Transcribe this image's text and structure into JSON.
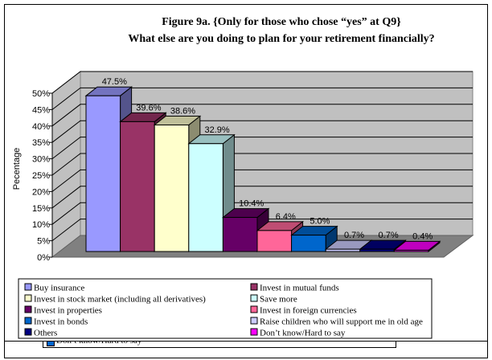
{
  "chart_data": {
    "type": "bar",
    "title": "Figure 9a. {Only for those who chose “yes” at Q9}",
    "subtitle": "What else are you doing to plan for your retirement financially?",
    "xlabel": "",
    "ylabel": "Pecentage",
    "ylim": [
      0,
      50
    ],
    "yticks": [
      "0%",
      "5%",
      "10%",
      "15%",
      "20%",
      "25%",
      "30%",
      "35%",
      "40%",
      "45%",
      "50%"
    ],
    "categories": [
      "Buy insurance",
      "Invest in mutual funds",
      "Invest in stock market (including all derivatives)",
      "Save more",
      "Invest in properties",
      "Invest in foreign currencies",
      "Invest in bonds",
      "Raise children who will support me in old age",
      "Others",
      "Don’t know/Hard to say"
    ],
    "values": [
      47.5,
      39.6,
      38.6,
      32.9,
      10.4,
      6.4,
      5.0,
      0.7,
      0.7,
      0.4
    ],
    "labels": [
      "47.5%",
      "39.6%",
      "38.6%",
      "32.9%",
      "10.4%",
      "6.4%",
      "5.0%",
      "0.7%",
      "0.7%",
      "0.4%"
    ],
    "colors": [
      "#9999ff",
      "#993366",
      "#ffffcc",
      "#ccffff",
      "#660066",
      "#ff6699",
      "#0066cc",
      "#ccccff",
      "#000080",
      "#ff00ff"
    ],
    "legend": "bottom",
    "grid": true
  },
  "hidden_legend_item": "Don’t know/Hard to say"
}
